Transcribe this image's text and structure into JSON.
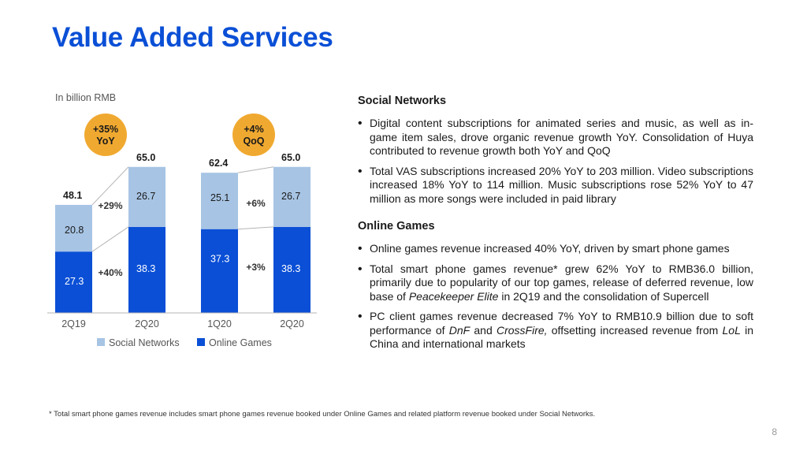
{
  "title": "Value Added Services",
  "unit_label": "In billion RMB",
  "colors": {
    "title": "#0a4fd6",
    "social_networks": "#a7c4e4",
    "online_games": "#0a4fd6",
    "badge": "#f0a930"
  },
  "chart_data": [
    {
      "type": "bar",
      "stacked": true,
      "categories": [
        "2Q19",
        "2Q20"
      ],
      "series": [
        {
          "name": "Online Games",
          "values": [
            27.3,
            38.3
          ]
        },
        {
          "name": "Social Networks",
          "values": [
            20.8,
            26.7
          ]
        }
      ],
      "totals": [
        "48.1",
        "65.0"
      ],
      "segment_labels": {
        "Online Games": [
          "27.3",
          "38.3"
        ],
        "Social Networks": [
          "20.8",
          "26.7"
        ]
      },
      "growth": {
        "Social Networks": "+29%",
        "Online Games": "+40%"
      },
      "badge": {
        "line1": "+35%",
        "line2": "YoY"
      }
    },
    {
      "type": "bar",
      "stacked": true,
      "categories": [
        "1Q20",
        "2Q20"
      ],
      "series": [
        {
          "name": "Online Games",
          "values": [
            37.3,
            38.3
          ]
        },
        {
          "name": "Social Networks",
          "values": [
            25.1,
            26.7
          ]
        }
      ],
      "totals": [
        "62.4",
        "65.0"
      ],
      "segment_labels": {
        "Online Games": [
          "37.3",
          "38.3"
        ],
        "Social Networks": [
          "25.1",
          "26.7"
        ]
      },
      "growth": {
        "Social Networks": "+6%",
        "Online Games": "+3%"
      },
      "badge": {
        "line1": "+4%",
        "line2": "QoQ"
      }
    }
  ],
  "legend": [
    {
      "label": "Social Networks",
      "color": "#a7c4e4"
    },
    {
      "label": "Online Games",
      "color": "#0a4fd6"
    }
  ],
  "sections": [
    {
      "heading": "Social Networks",
      "bullets": [
        [
          {
            "t": "Digital content subscriptions for animated series and music, as well as in-game item sales, drove organic revenue growth YoY. Consolidation of Huya contributed to revenue growth both YoY and QoQ"
          }
        ],
        [
          {
            "t": "Total VAS subscriptions increased 20% YoY to 203 million. Video subscriptions increased 18% YoY to 114 million. Music subscriptions rose 52% YoY to 47 million as more songs were included in paid library"
          }
        ]
      ]
    },
    {
      "heading": "Online Games",
      "bullets": [
        [
          {
            "t": "Online games revenue increased 40% YoY, driven by smart phone games"
          }
        ],
        [
          {
            "t": "Total smart phone games revenue* grew 62% YoY to RMB36.0 billion, primarily due to popularity of our top games, release of deferred revenue, low base of "
          },
          {
            "t": "Peacekeeper Elite",
            "i": true
          },
          {
            "t": " in 2Q19 and the consolidation of Supercell"
          }
        ],
        [
          {
            "t": "PC client games revenue decreased 7% YoY to RMB10.9 billion due to soft performance of "
          },
          {
            "t": "DnF",
            "i": true
          },
          {
            "t": " and "
          },
          {
            "t": "CrossFire,",
            "i": true
          },
          {
            "t": " offsetting increased revenue from "
          },
          {
            "t": "LoL",
            "i": true
          },
          {
            "t": " in China and international markets"
          }
        ]
      ]
    }
  ],
  "footnote": "* Total smart phone games revenue includes smart phone games revenue booked under Online Games and related platform revenue booked under Social Networks.",
  "page_number": "8"
}
